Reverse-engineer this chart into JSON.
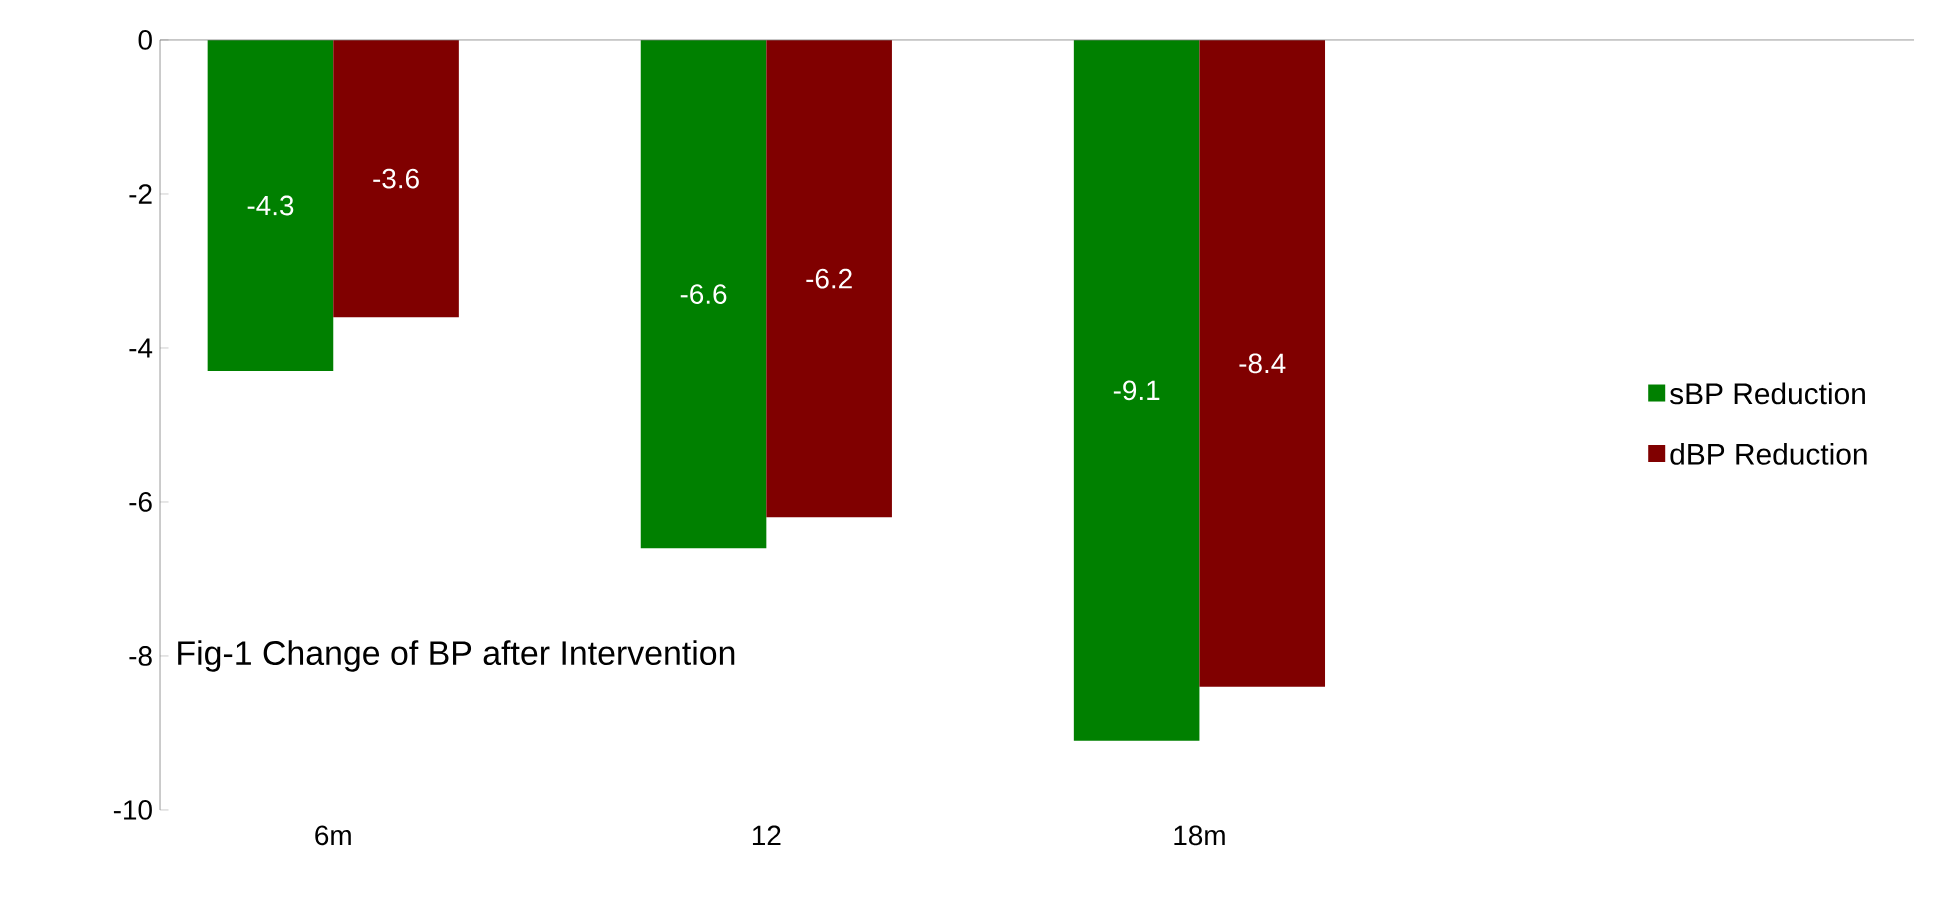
{
  "chart_data": {
    "type": "bar",
    "title": "Fig-1 Change of BP after Intervention",
    "categories": [
      "6m",
      "12",
      "18m"
    ],
    "series": [
      {
        "name": "sBP Reduction",
        "color": "#008000",
        "values": [
          -4.3,
          -6.6,
          -9.1
        ],
        "value_labels": [
          "-4.3",
          "-6.6",
          "-9.1"
        ]
      },
      {
        "name": "dBP Reduction",
        "color": "#800000",
        "values": [
          -3.6,
          -6.2,
          -8.4
        ],
        "value_labels": [
          "-3.6",
          "-6.2",
          "-8.4"
        ]
      }
    ],
    "ylim": [
      -10,
      0
    ],
    "yticks": [
      -10,
      -8,
      -6,
      -4,
      -2,
      0
    ],
    "grid": false,
    "legend": "right"
  }
}
